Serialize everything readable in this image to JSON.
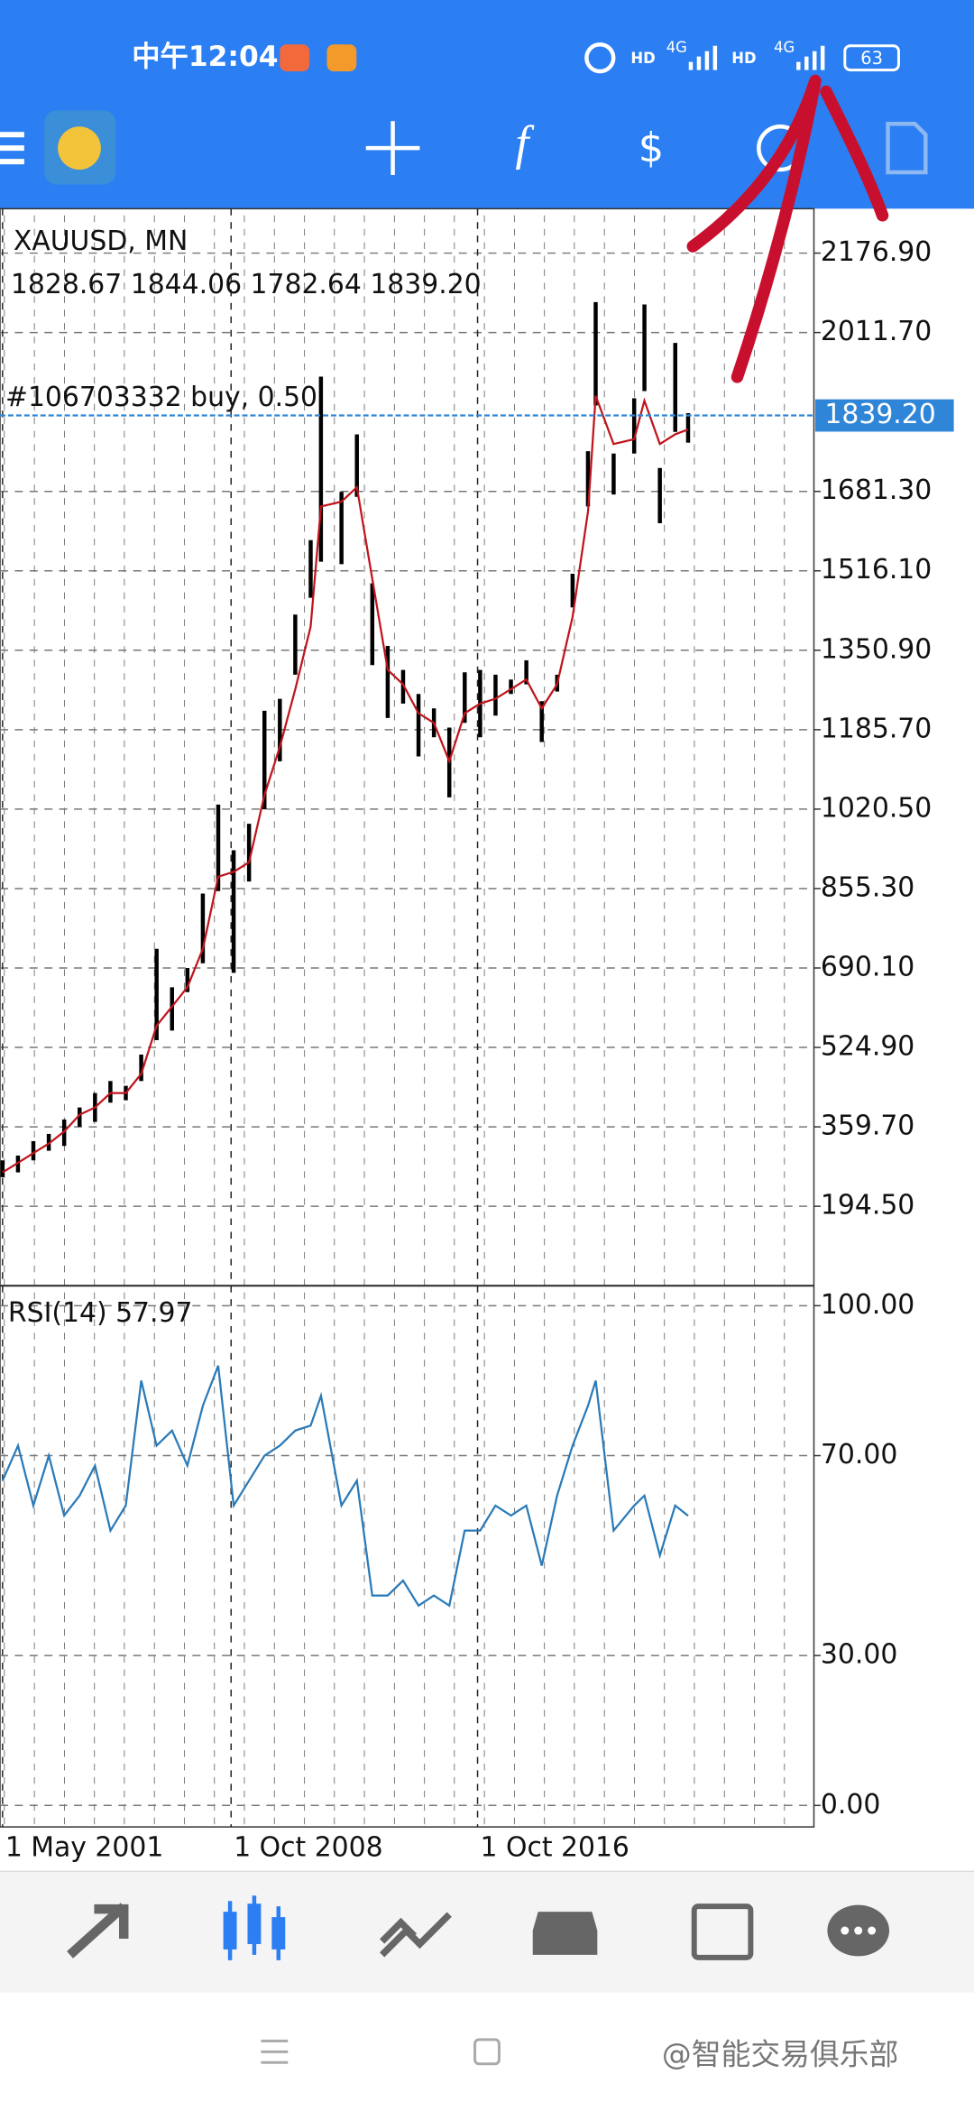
{
  "status_bar": {
    "time": "中午12:04",
    "signal_labels": [
      "HD",
      "4G",
      "HD",
      "4G"
    ],
    "battery": "63"
  },
  "chart_data": [
    {
      "type": "ohlc",
      "title": "XAUUSD, MN",
      "ohlc_label": "1828.67 1844.06 1782.64 1839.20",
      "order_label": "#106703332 buy, 0.50",
      "price_line": {
        "value": 1839.2,
        "label": "1839.20"
      },
      "x": [
        "2001-05",
        "2001-11",
        "2002-05",
        "2002-11",
        "2003-05",
        "2003-11",
        "2004-05",
        "2004-11",
        "2005-05",
        "2005-11",
        "2006-05",
        "2006-11",
        "2007-05",
        "2007-11",
        "2008-05",
        "2008-11",
        "2009-05",
        "2009-11",
        "2010-05",
        "2010-11",
        "2011-05",
        "2011-09",
        "2012-05",
        "2012-11",
        "2013-05",
        "2013-11",
        "2014-05",
        "2014-11",
        "2015-05",
        "2015-11",
        "2016-05",
        "2016-11",
        "2017-05",
        "2017-11",
        "2018-05",
        "2018-11",
        "2019-05",
        "2019-11",
        "2020-05",
        "2020-08",
        "2021-03",
        "2021-11",
        "2022-03",
        "2022-09",
        "2023-03",
        "2023-08"
      ],
      "high": [
        290,
        300,
        330,
        345,
        375,
        400,
        430,
        455,
        445,
        510,
        730,
        650,
        690,
        845,
        1030,
        935,
        990,
        1225,
        1250,
        1425,
        1580,
        1920,
        1680,
        1800,
        1490,
        1360,
        1310,
        1260,
        1230,
        1190,
        1305,
        1310,
        1300,
        1290,
        1330,
        1245,
        1300,
        1510,
        1765,
        2075,
        1760,
        1875,
        2070,
        1730,
        1990,
        1844.06
      ],
      "low": [
        255,
        265,
        290,
        310,
        320,
        360,
        370,
        410,
        415,
        455,
        540,
        560,
        640,
        700,
        850,
        680,
        870,
        1020,
        1120,
        1300,
        1460,
        1535,
        1530,
        1670,
        1320,
        1210,
        1240,
        1130,
        1170,
        1045,
        1200,
        1170,
        1215,
        1260,
        1280,
        1160,
        1265,
        1440,
        1650,
        1860,
        1675,
        1760,
        1890,
        1615,
        1805,
        1782.64
      ],
      "ma": [
        265,
        285,
        305,
        325,
        350,
        385,
        400,
        430,
        430,
        470,
        570,
        610,
        650,
        730,
        880,
        890,
        910,
        1050,
        1150,
        1270,
        1400,
        1650,
        1660,
        1690,
        1500,
        1310,
        1280,
        1220,
        1200,
        1120,
        1220,
        1240,
        1250,
        1270,
        1290,
        1230,
        1280,
        1420,
        1640,
        1880,
        1780,
        1790,
        1870,
        1780,
        1800,
        1810
      ],
      "bar_color": "#000000",
      "ma_color": "#c0141c",
      "price_line_color": "#2f86d8",
      "xlim": [
        "2001-04",
        "2027-09"
      ],
      "xticks": [
        {
          "value": "2001-05",
          "label": "1 May 2001"
        },
        {
          "value": "2008-10",
          "label": "1 Oct 2008"
        },
        {
          "value": "2016-10",
          "label": "1 Oct 2016"
        }
      ],
      "ylim": [
        29.3,
        2269.3
      ],
      "yticks": [
        {
          "value": 2176.9,
          "label": "2176.90"
        },
        {
          "value": 2011.7,
          "label": "2011.70"
        },
        {
          "value": 1681.3,
          "label": "1681.30"
        },
        {
          "value": 1516.1,
          "label": "1516.10"
        },
        {
          "value": 1350.9,
          "label": "1350.90"
        },
        {
          "value": 1185.7,
          "label": "1185.70"
        },
        {
          "value": 1020.5,
          "label": "1020.50"
        },
        {
          "value": 855.3,
          "label": "855.30"
        },
        {
          "value": 690.1,
          "label": "690.10"
        },
        {
          "value": 524.9,
          "label": "524.90"
        },
        {
          "value": 359.7,
          "label": "359.70"
        },
        {
          "value": 194.5,
          "label": "194.50"
        }
      ],
      "grid": true
    },
    {
      "type": "line",
      "title": "RSI(14) 57.97",
      "x": [
        "2001-05",
        "2001-11",
        "2002-05",
        "2002-11",
        "2003-05",
        "2003-11",
        "2004-05",
        "2004-11",
        "2005-05",
        "2005-11",
        "2006-05",
        "2006-11",
        "2007-05",
        "2007-11",
        "2008-05",
        "2008-11",
        "2009-05",
        "2009-11",
        "2010-05",
        "2010-11",
        "2011-05",
        "2011-09",
        "2012-05",
        "2012-11",
        "2013-05",
        "2013-11",
        "2014-05",
        "2014-11",
        "2015-05",
        "2015-11",
        "2016-05",
        "2016-11",
        "2017-05",
        "2017-11",
        "2018-05",
        "2018-11",
        "2019-05",
        "2019-11",
        "2020-05",
        "2020-08",
        "2021-03",
        "2021-11",
        "2022-03",
        "2022-09",
        "2023-03",
        "2023-08"
      ],
      "values": [
        65,
        72,
        60,
        70,
        58,
        62,
        68,
        55,
        60,
        85,
        72,
        75,
        68,
        80,
        88,
        60,
        65,
        70,
        72,
        75,
        76,
        82,
        60,
        65,
        42,
        42,
        45,
        40,
        42,
        40,
        55,
        55,
        60,
        58,
        60,
        48,
        62,
        72,
        80,
        85,
        55,
        60,
        62,
        50,
        60,
        57.97
      ],
      "color": "#2a7ab8",
      "xlim": [
        "2001-04",
        "2027-09"
      ],
      "ylim": [
        -4.3,
        104
      ],
      "yticks": [
        {
          "value": 100,
          "label": "100.00"
        },
        {
          "value": 70,
          "label": "70.00"
        },
        {
          "value": 30,
          "label": "30.00"
        },
        {
          "value": 0,
          "label": "0.00"
        }
      ],
      "grid": true
    }
  ],
  "watermark": "@智能交易俱乐部"
}
